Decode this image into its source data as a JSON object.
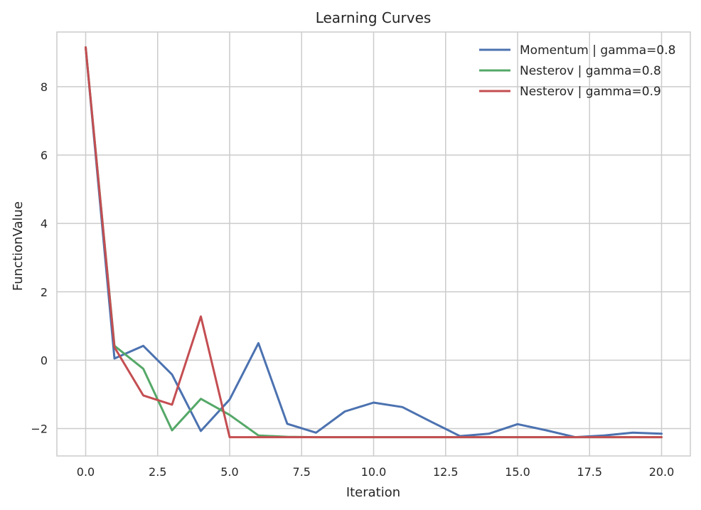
{
  "chart_data": {
    "type": "line",
    "title": "Learning Curves",
    "xlabel": "Iteration",
    "ylabel": "FunctionValue",
    "xlim": [
      -1,
      21
    ],
    "ylim": [
      -2.8,
      9.6
    ],
    "xticks": [
      0,
      2.5,
      5,
      7.5,
      10,
      12.5,
      15,
      17.5,
      20
    ],
    "xtick_labels": [
      "0.0",
      "2.5",
      "5.0",
      "7.5",
      "10.0",
      "12.5",
      "15.0",
      "17.5",
      "20.0"
    ],
    "yticks": [
      -2,
      0,
      2,
      4,
      6,
      8
    ],
    "ytick_labels": [
      "−2",
      "0",
      "2",
      "4",
      "6",
      "8"
    ],
    "grid": true,
    "legend_position": "top-right",
    "x": [
      0,
      1,
      2,
      3,
      4,
      5,
      6,
      7,
      8,
      9,
      10,
      11,
      12,
      13,
      14,
      15,
      16,
      17,
      18,
      19,
      20
    ],
    "series": [
      {
        "name": "Momentum | gamma=0.8",
        "color": "#4c72b0",
        "values": [
          9.15,
          0.05,
          0.42,
          -0.42,
          -2.07,
          -1.15,
          0.5,
          -1.86,
          -2.12,
          -1.5,
          -1.24,
          -1.37,
          -1.8,
          -2.22,
          -2.15,
          -1.87,
          -2.05,
          -2.25,
          -2.2,
          -2.12,
          -2.15
        ]
      },
      {
        "name": "Nesterov | gamma=0.8",
        "color": "#55a868",
        "values": [
          9.15,
          0.42,
          -0.25,
          -2.05,
          -1.13,
          -1.6,
          -2.2,
          -2.24,
          -2.25,
          -2.25,
          -2.25,
          -2.25,
          -2.25,
          -2.25,
          -2.25,
          -2.25,
          -2.25,
          -2.25,
          -2.25,
          -2.25,
          -2.25
        ]
      },
      {
        "name": "Nesterov | gamma=0.9",
        "color": "#c44e52",
        "values": [
          9.15,
          0.38,
          -1.03,
          -1.3,
          1.28,
          -2.25,
          -2.25,
          -2.25,
          -2.25,
          -2.25,
          -2.25,
          -2.25,
          -2.25,
          -2.25,
          -2.25,
          -2.25,
          -2.25,
          -2.25,
          -2.25,
          -2.25,
          -2.25
        ]
      }
    ]
  }
}
